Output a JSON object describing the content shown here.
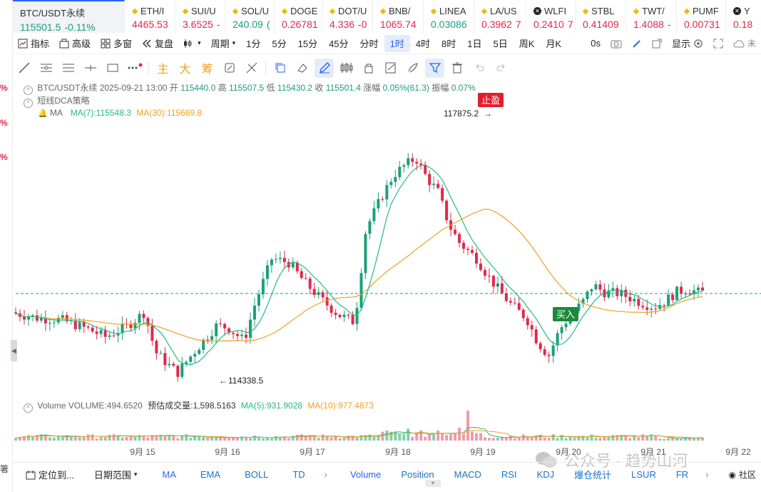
{
  "left_rail": {
    "pct_markers": [
      "%",
      "%",
      "%"
    ],
    "bottom_char": "箸"
  },
  "tickers": [
    {
      "name": "BTC/USDT永续",
      "price": "115501.5",
      "change": "-0.11%",
      "dir": "up",
      "icon": "bitcoin-icon"
    },
    {
      "name": "ETH/I",
      "price": "4465.53",
      "change": "",
      "dir": "dn",
      "icon": "diamond-icon"
    },
    {
      "name": "SUI/U",
      "price": "3.6525",
      "change": "-",
      "dir": "dn",
      "icon": "diamond-icon"
    },
    {
      "name": "SOL/U",
      "price": "240.09",
      "change": "(",
      "dir": "up",
      "icon": "diamond-icon"
    },
    {
      "name": "DOGE",
      "price": "0.26781",
      "change": "",
      "dir": "dn",
      "icon": "diamond-icon"
    },
    {
      "name": "DOT/U",
      "price": "4.336",
      "change": "-0",
      "dir": "dn",
      "icon": "diamond-icon"
    },
    {
      "name": "BNB/",
      "price": "1065.74",
      "change": "",
      "dir": "dn",
      "icon": "diamond-icon"
    },
    {
      "name": "LINEA",
      "price": "0.03086",
      "change": "",
      "dir": "up",
      "icon": "diamond-icon"
    },
    {
      "name": "LA/US",
      "price": "0.3962",
      "change": "7",
      "dir": "dn",
      "icon": "diamond-icon"
    },
    {
      "name": "WLFI",
      "price": "0.2410",
      "change": "7",
      "dir": "dn",
      "icon": "x-circle-icon"
    },
    {
      "name": "STBL",
      "price": "0.41409",
      "change": "",
      "dir": "dn",
      "icon": "diamond-icon"
    },
    {
      "name": "TWT/",
      "price": "1.4088",
      "change": "-",
      "dir": "dn",
      "icon": "diamond-icon"
    },
    {
      "name": "PUMF",
      "price": "0.00731",
      "change": "",
      "dir": "dn",
      "icon": "diamond-icon"
    },
    {
      "name": "Y",
      "price": "0.18",
      "change": "",
      "dir": "dn",
      "icon": "x-circle-icon"
    }
  ],
  "toolbar": {
    "indicators": "指标",
    "advanced": "高级",
    "multi_window": "多窗",
    "replay": "复盘",
    "period": "周期",
    "periods": [
      "1分",
      "5分",
      "15分",
      "45分",
      "分时",
      "1时",
      "4时",
      "8时",
      "1日",
      "5日",
      "周K",
      "月K"
    ],
    "selected_period": "1时",
    "countdown": "0s",
    "display": "显示"
  },
  "drawing_tools": {
    "text_labels": [
      "主",
      "大",
      "筹"
    ]
  },
  "info": {
    "symbol": "BTC/USDT永续",
    "datetime": "2025-09-21 13:00",
    "open_label": "开",
    "open": "115440.0",
    "high_label": "高",
    "high": "115507.5",
    "low_label": "低",
    "low": "115430.2",
    "close_label": "收",
    "close": "115501.4",
    "chg_label": "涨幅",
    "chg": "0.05%(61.3)",
    "amp_label": "振幅",
    "amp": "0.07%",
    "strategy": "短线DCA策略",
    "ma_label": "MA",
    "ma7": "MA(7):115548.3",
    "ma30": "MA(30):115669.8"
  },
  "volume_info": {
    "label": "Volume",
    "vol": "VOLUME:494.6520",
    "est": "预估成交量:1,598.5163",
    "ma5": "MA(5):931.9028",
    "ma10": "MA(10):977.4873"
  },
  "markers": {
    "take_profit": "止盈",
    "buy": "买入",
    "high": "117875.2",
    "low": "114338.5"
  },
  "colors": {
    "up": "#1aa07a",
    "down": "#e0294a",
    "ma7": "#26b88a",
    "ma30": "#f0a020",
    "accent": "#2962ff"
  },
  "chart_data": {
    "type": "candlestick",
    "x_ticks": [
      "9月 15",
      "9月 16",
      "9月 17",
      "9月 18",
      "9月 19",
      "9月 20",
      "9月 21",
      "9月 22"
    ],
    "price_range": [
      114200,
      118000
    ],
    "high_marker": 117875.2,
    "low_marker": 114338.5,
    "last_price": 115501.5,
    "ma7_last": 115548.3,
    "ma30_last": 115669.8
  },
  "bottom": {
    "locate": "定位到...",
    "date_range": "日期范围",
    "indicators": [
      "MA",
      "EMA",
      "BOLL",
      "TD"
    ],
    "sub_indicators": [
      "Volume",
      "Position",
      "MACD",
      "RSI",
      "KDJ",
      "爆仓统计",
      "LSUR",
      "FR"
    ],
    "right": "社区"
  },
  "watermark": "公众号 · 趋势山河"
}
